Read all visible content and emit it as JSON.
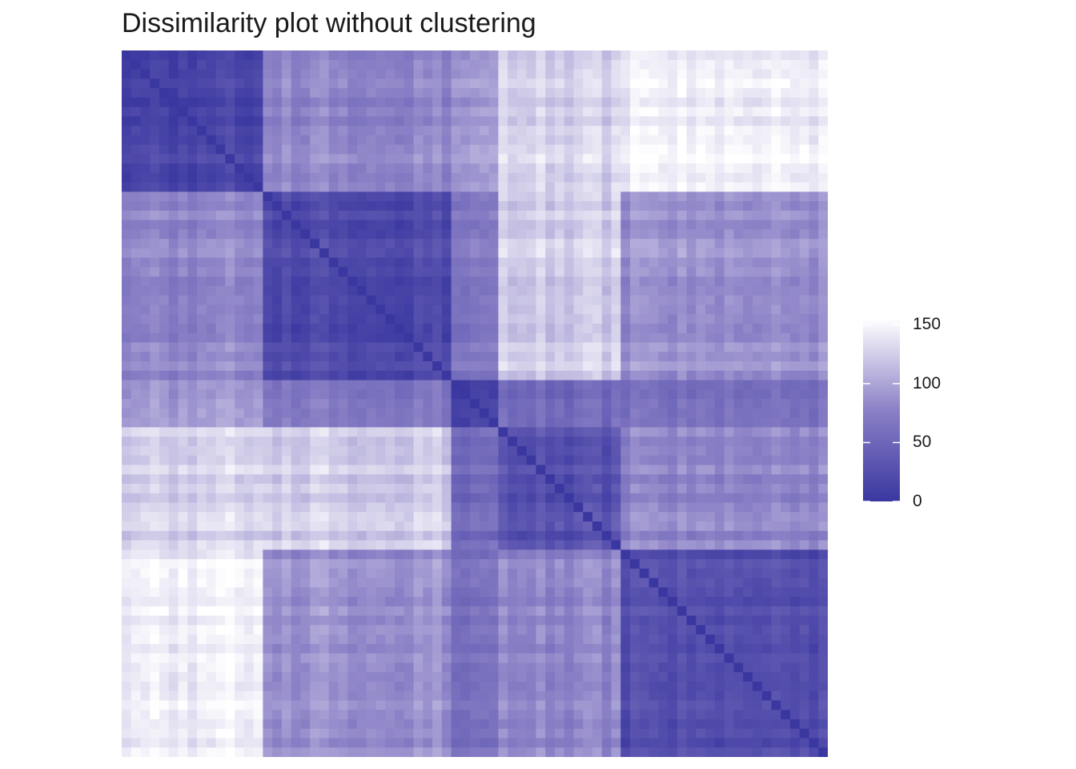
{
  "title": "Dissimilarity plot without clustering",
  "chart_data": {
    "type": "heatmap",
    "title": "Dissimilarity plot without clustering",
    "n": 75,
    "grid": false,
    "axes": "none",
    "clusters": [
      {
        "start": 0,
        "size": 15
      },
      {
        "start": 15,
        "size": 20
      },
      {
        "start": 35,
        "size": 5
      },
      {
        "start": 40,
        "size": 13
      },
      {
        "start": 53,
        "size": 22
      }
    ],
    "block_mean_values": [
      [
        15,
        82,
        94,
        128,
        145
      ],
      [
        82,
        22,
        70,
        125,
        88
      ],
      [
        94,
        70,
        12,
        55,
        60
      ],
      [
        128,
        125,
        55,
        28,
        80
      ],
      [
        145,
        88,
        60,
        80,
        24
      ]
    ],
    "diagonal_value": 0,
    "color_scale": {
      "low": "#3a37a0",
      "high": "#ffffff",
      "min": 0,
      "max": 155
    },
    "legend": {
      "position": "right",
      "ticks": [
        0,
        50,
        100,
        150
      ],
      "labels": [
        "0",
        "50",
        "100",
        "150"
      ]
    }
  }
}
